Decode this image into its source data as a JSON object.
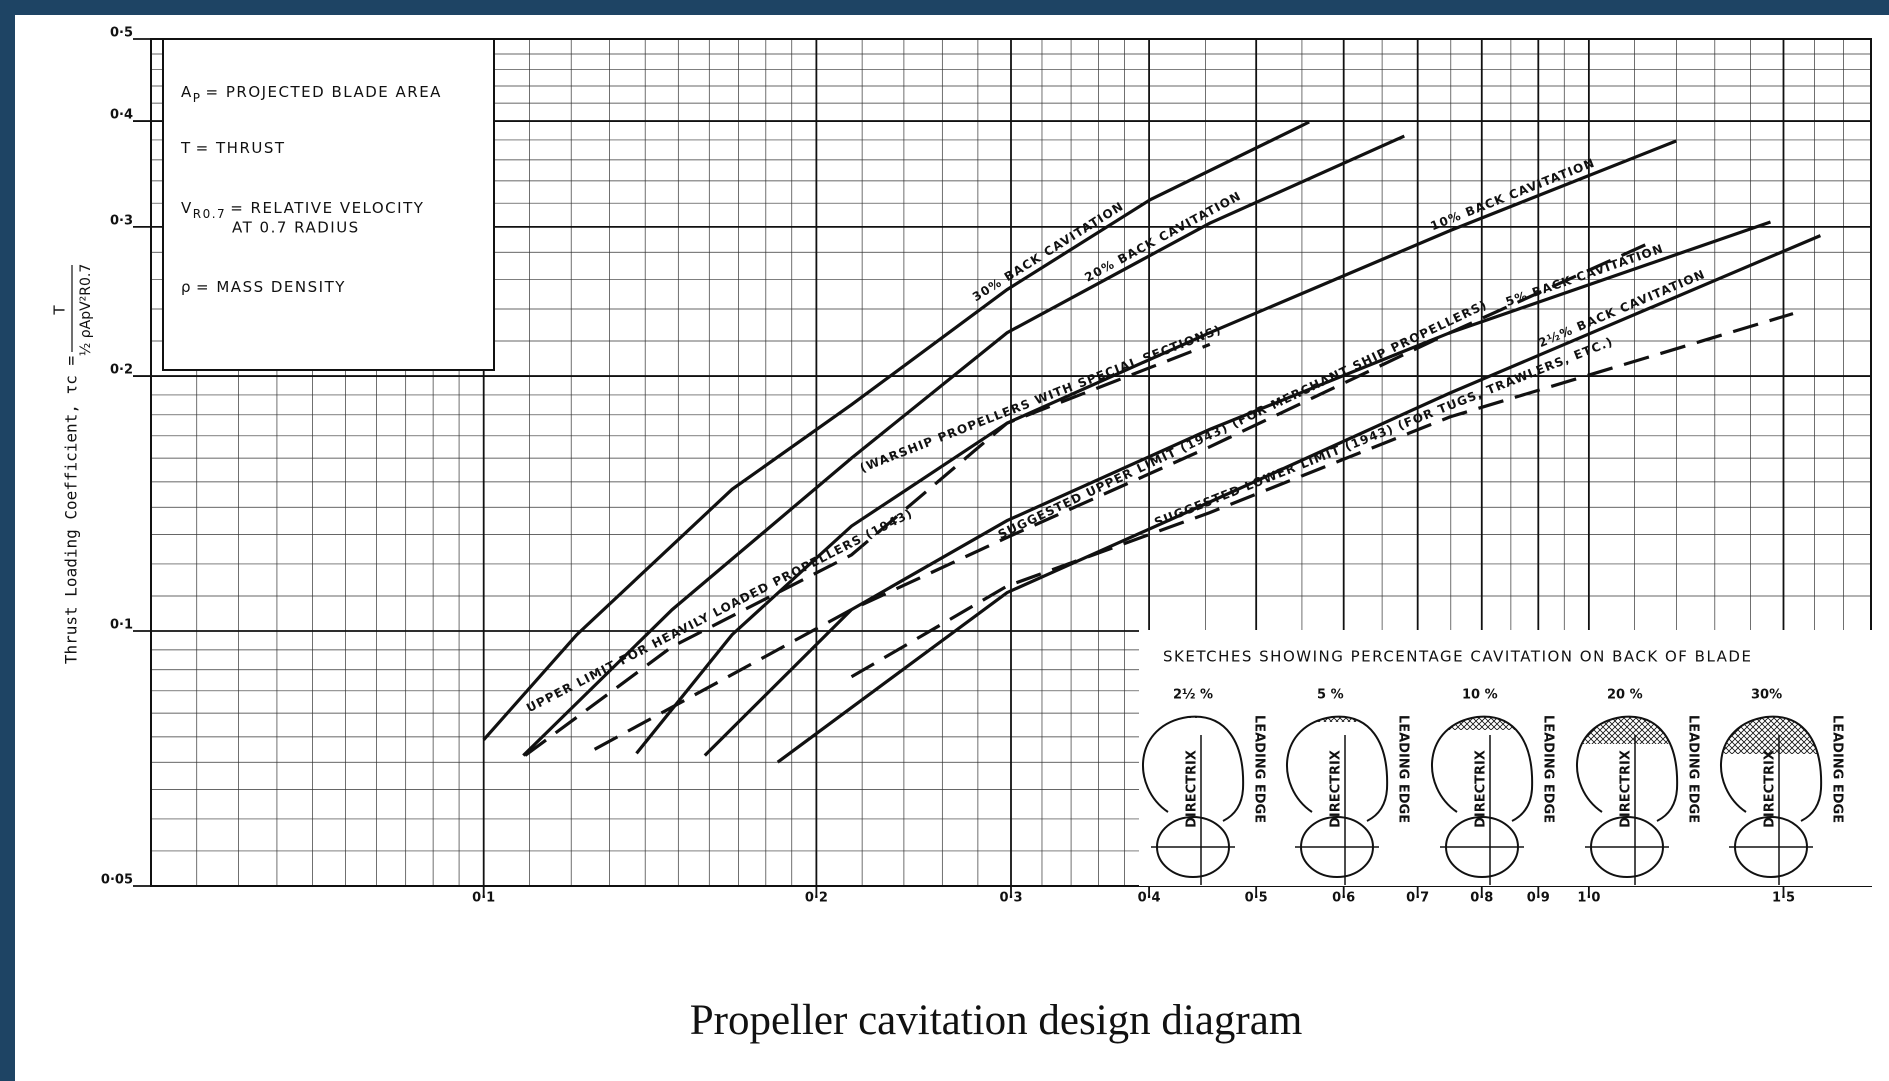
{
  "caption": "Propeller cavitation design diagram",
  "chart_data": {
    "type": "line",
    "log_x": true,
    "log_y": true,
    "grid": true,
    "color": "#111111",
    "ylabel": "Thrust Loading Coefficient, τc =",
    "ylabel_numerator": "T",
    "ylabel_denominator": "½ ρApV²R0.7",
    "xlim": [
      0.05,
      1.8
    ],
    "ylim": [
      0.05,
      0.5
    ],
    "xticks": [
      {
        "value": 0.1,
        "label": "0·1"
      },
      {
        "value": 0.2,
        "label": "0·2"
      },
      {
        "value": 0.3,
        "label": "0·3"
      },
      {
        "value": 0.4,
        "label": "0·4"
      },
      {
        "value": 0.5,
        "label": "0·5"
      },
      {
        "value": 0.6,
        "label": "0·6"
      },
      {
        "value": 0.7,
        "label": "0·7"
      },
      {
        "value": 0.8,
        "label": "0·8"
      },
      {
        "value": 0.9,
        "label": "0·9"
      },
      {
        "value": 1.0,
        "label": "1·0"
      },
      {
        "value": 1.5,
        "label": "1·5"
      }
    ],
    "yticks": [
      {
        "value": 0.05,
        "label": "0·05"
      },
      {
        "value": 0.1,
        "label": "0·1"
      },
      {
        "value": 0.2,
        "label": "0·2"
      },
      {
        "value": 0.3,
        "label": "0·3"
      },
      {
        "value": 0.4,
        "label": "0·4"
      },
      {
        "value": 0.5,
        "label": "0·5"
      }
    ],
    "xgrid_minor": [
      0.055,
      0.06,
      0.065,
      0.07,
      0.075,
      0.08,
      0.085,
      0.09,
      0.095,
      0.11,
      0.12,
      0.13,
      0.14,
      0.15,
      0.16,
      0.17,
      0.18,
      0.19,
      0.22,
      0.24,
      0.26,
      0.28,
      0.32,
      0.34,
      0.36,
      0.38,
      0.45,
      0.55,
      0.65,
      0.75,
      0.85,
      0.95,
      1.1,
      1.2,
      1.3,
      1.4,
      1.6,
      1.7
    ],
    "ygrid_minor": [
      0.055,
      0.06,
      0.065,
      0.07,
      0.075,
      0.08,
      0.085,
      0.09,
      0.095,
      0.11,
      0.12,
      0.13,
      0.14,
      0.15,
      0.16,
      0.17,
      0.18,
      0.19,
      0.22,
      0.24,
      0.26,
      0.28,
      0.32,
      0.34,
      0.36,
      0.38,
      0.42,
      0.44,
      0.46,
      0.48
    ],
    "notes": [
      {
        "symbol": "A",
        "sub": "P",
        "text": "= PROJECTED BLADE AREA"
      },
      {
        "symbol": "T",
        "text": "= THRUST"
      },
      {
        "symbol": "V",
        "sub": "R0.7",
        "text": "= RELATIVE VELOCITY",
        "text2": "AT 0.7 RADIUS"
      },
      {
        "symbol": "ρ",
        "text": "= MASS DENSITY"
      }
    ],
    "series": [
      {
        "name": "30% BACK CAVITATION",
        "dash": false,
        "x": [
          0.1,
          0.1214,
          0.1678,
          0.2152,
          0.2976,
          0.401,
          0.5584
        ],
        "values": [
          0.0744,
          0.099,
          0.147,
          0.185,
          0.253,
          0.323,
          0.399
        ]
      },
      {
        "name": "20% BACK CAVITATION",
        "dash": false,
        "x": [
          0.1086,
          0.1481,
          0.2152,
          0.2976,
          0.4539,
          0.6808
        ],
        "values": [
          0.0713,
          0.106,
          0.16,
          0.225,
          0.303,
          0.384
        ]
      },
      {
        "name": "10% BACK CAVITATION",
        "dash": false,
        "x": [
          0.1375,
          0.1678,
          0.2152,
          0.2976,
          0.4539,
          0.7488,
          1.2
        ],
        "values": [
          0.0717,
          0.099,
          0.133,
          0.176,
          0.225,
          0.297,
          0.379
        ]
      },
      {
        "name": "5% BACK CAVITATION",
        "dash": false,
        "x": [
          0.1585,
          0.2152,
          0.2976,
          0.4539,
          0.7488,
          1.46
        ],
        "values": [
          0.0713,
          0.106,
          0.135,
          0.173,
          0.225,
          0.304
        ]
      },
      {
        "name": "2½% BACK CAVITATION",
        "dash": false,
        "x": [
          0.1845,
          0.2976,
          0.4539,
          0.7488,
          1.62
        ],
        "values": [
          0.07,
          0.111,
          0.142,
          0.191,
          0.293
        ]
      },
      {
        "name": "UPPER LIMIT FOR HEAVILY LOADED PROPELLERS (1943)",
        "note": "(WARSHIP PROPELLERS WITH SPECIAL SECTIONS)",
        "dash": true,
        "x": [
          0.109,
          0.148,
          0.2152,
          0.2976,
          0.4539
        ],
        "values": [
          0.0713,
          0.0958,
          0.123,
          0.176,
          0.218
        ]
      },
      {
        "name": "SUGGESTED UPPER LIMIT (1943) (FOR MERCHANT SHIP PROPELLERS)",
        "dash": true,
        "x": [
          0.126,
          0.2152,
          0.2976,
          0.4539,
          0.7488,
          1.14
        ],
        "values": [
          0.0725,
          0.106,
          0.129,
          0.165,
          0.225,
          0.288
        ]
      },
      {
        "name": "SUGGESTED LOWER LIMIT (1943) (FOR TUGS, TRAWLERS, ETC.)",
        "dash": true,
        "x": [
          0.2152,
          0.2976,
          0.4539,
          0.7488,
          1.53
        ],
        "values": [
          0.0883,
          0.113,
          0.138,
          0.179,
          0.237
        ]
      }
    ],
    "inset": {
      "title": "SKETCHES SHOWING PERCENTAGE CAVITATION ON BACK OF BLADE",
      "sketches": [
        "2½ %",
        "5 %",
        "10 %",
        "20 %",
        "30%"
      ],
      "directrix": "DIRECTRIX",
      "leading_edge": "LEADING EDGE"
    }
  }
}
